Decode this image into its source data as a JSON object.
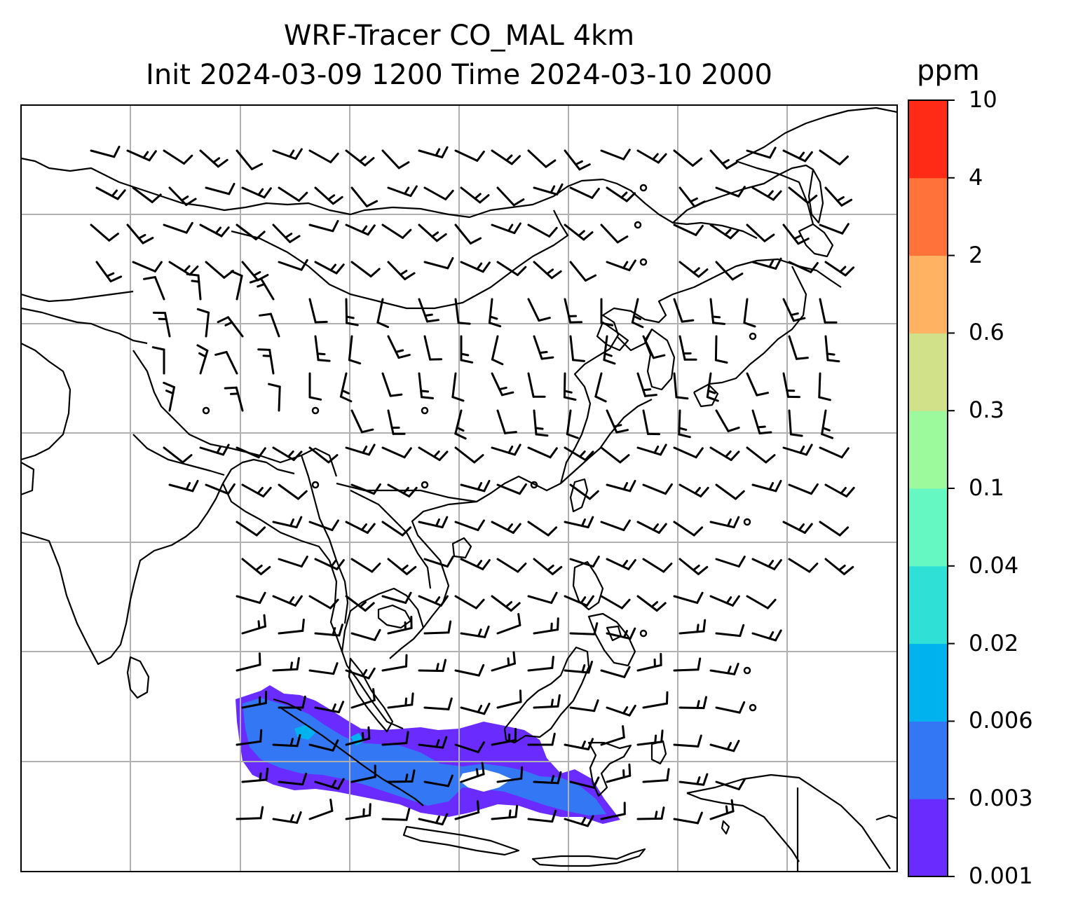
{
  "title": {
    "line1": "WRF-Tracer CO_MAL 4km",
    "line2": "Init 2024-03-09 1200 Time 2024-03-10 2000"
  },
  "colorbar": {
    "unit": "ppm",
    "levels": [
      "0.001",
      "0.003",
      "0.006",
      "0.02",
      "0.04",
      "0.1",
      "0.3",
      "0.6",
      "2",
      "4",
      "10"
    ],
    "colors": [
      "#6a2bff",
      "#3377f5",
      "#00b2ee",
      "#2fe0d6",
      "#66f8c2",
      "#9cf99c",
      "#d1e18a",
      "#ffb262",
      "#ff733b",
      "#ff2b17"
    ]
  },
  "map": {
    "frame_color": "#000000",
    "grid_color": "#b0b0b0",
    "coastline_color": "#000000",
    "wind_barb_color": "#000000"
  }
}
